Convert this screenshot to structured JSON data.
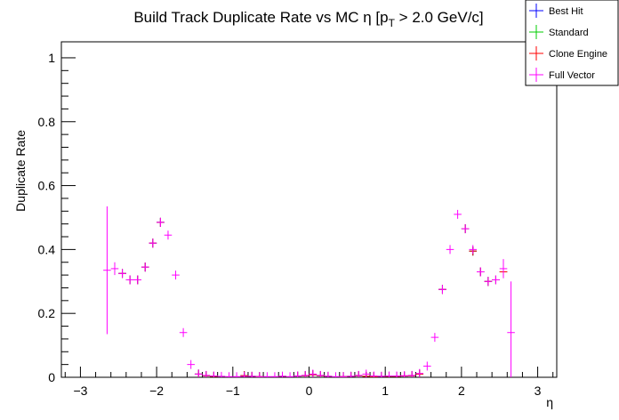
{
  "chart_data": {
    "type": "scatter",
    "title_main": "Build Track Duplicate Rate vs MC η [p",
    "title_sub": "T",
    "title_rest": " > 2.0 GeV/c]",
    "xlabel": "η",
    "ylabel": "Duplicate Rate",
    "xlim": [
      -3.25,
      3.25
    ],
    "ylim": [
      0,
      1.05
    ],
    "x_ticks": [
      "−3",
      "−2",
      "−1",
      "0",
      "1",
      "2",
      "3"
    ],
    "y_ticks": [
      "0",
      "0.2",
      "0.4",
      "0.6",
      "0.8",
      "1"
    ],
    "bin_width": 0.1,
    "legend_position": "top-right",
    "series": [
      {
        "name": "Best Hit",
        "color": "#0000ff",
        "x": [
          -2.45,
          -2.35,
          -2.25,
          -2.15,
          -2.05,
          -1.95,
          -1.45,
          -1.35,
          -1.25,
          -0.85,
          -0.75,
          -0.65,
          -0.35,
          -0.15,
          -0.05,
          0.05,
          0.15,
          0.25,
          0.45,
          0.55,
          0.65,
          0.75,
          0.85,
          0.95,
          1.05,
          1.15,
          1.25,
          1.35,
          1.45,
          1.75,
          2.05,
          2.15,
          2.25,
          2.35,
          2.45,
          2.55
        ],
        "y": [
          0.325,
          0.305,
          0.305,
          0.345,
          0.42,
          0.485,
          0.01,
          0.005,
          0.003,
          0.005,
          0.003,
          0.002,
          0.003,
          0.004,
          0.005,
          0.008,
          0.005,
          0.003,
          0.002,
          0.003,
          0.005,
          0.003,
          0.002,
          0.003,
          0.003,
          0.003,
          0.004,
          0.005,
          0.01,
          0.275,
          0.465,
          0.395,
          0.33,
          0.3,
          0.305,
          0.33
        ]
      },
      {
        "name": "Standard",
        "color": "#00cc00",
        "x": [
          -2.45,
          -2.35,
          -2.25,
          -2.15,
          -2.05,
          -1.95,
          -1.45,
          -1.35,
          -1.25,
          -0.85,
          -0.75,
          -0.65,
          -0.35,
          -0.15,
          -0.05,
          0.05,
          0.15,
          0.25,
          0.45,
          0.55,
          0.65,
          0.75,
          0.85,
          0.95,
          1.05,
          1.15,
          1.25,
          1.35,
          1.45,
          1.75,
          2.05,
          2.15,
          2.25,
          2.35,
          2.45,
          2.55
        ],
        "y": [
          0.325,
          0.305,
          0.305,
          0.345,
          0.42,
          0.485,
          0.01,
          0.005,
          0.003,
          0.005,
          0.003,
          0.002,
          0.003,
          0.004,
          0.005,
          0.008,
          0.005,
          0.003,
          0.002,
          0.003,
          0.005,
          0.003,
          0.002,
          0.003,
          0.003,
          0.003,
          0.004,
          0.005,
          0.01,
          0.275,
          0.465,
          0.395,
          0.33,
          0.3,
          0.305,
          0.33
        ]
      },
      {
        "name": "Clone Engine",
        "color": "#ff0000",
        "x": [
          -2.45,
          -2.35,
          -2.25,
          -2.15,
          -2.05,
          -1.95,
          -1.45,
          -1.35,
          -1.25,
          -0.85,
          -0.75,
          -0.65,
          -0.35,
          -0.15,
          -0.05,
          0.05,
          0.15,
          0.25,
          0.45,
          0.55,
          0.65,
          0.75,
          0.85,
          0.95,
          1.05,
          1.15,
          1.25,
          1.35,
          1.45,
          1.75,
          2.05,
          2.15,
          2.25,
          2.35,
          2.45,
          2.55
        ],
        "y": [
          0.325,
          0.305,
          0.305,
          0.345,
          0.42,
          0.485,
          0.01,
          0.005,
          0.003,
          0.005,
          0.003,
          0.002,
          0.003,
          0.004,
          0.005,
          0.008,
          0.005,
          0.003,
          0.002,
          0.003,
          0.005,
          0.003,
          0.002,
          0.003,
          0.003,
          0.003,
          0.004,
          0.005,
          0.01,
          0.275,
          0.465,
          0.395,
          0.33,
          0.3,
          0.305,
          0.33
        ]
      },
      {
        "name": "Full Vector",
        "color": "#ff00ff",
        "x": [
          -2.65,
          -2.55,
          -2.45,
          -2.35,
          -2.25,
          -2.15,
          -2.05,
          -1.95,
          -1.85,
          -1.75,
          -1.65,
          -1.55,
          -1.45,
          -1.35,
          -1.25,
          -1.15,
          -1.05,
          -0.95,
          -0.85,
          -0.75,
          -0.65,
          -0.55,
          -0.45,
          -0.35,
          -0.25,
          -0.15,
          -0.05,
          0.05,
          0.15,
          0.25,
          0.35,
          0.45,
          0.55,
          0.65,
          0.75,
          0.85,
          0.95,
          1.05,
          1.15,
          1.25,
          1.35,
          1.45,
          1.55,
          1.65,
          1.75,
          1.85,
          1.95,
          2.05,
          2.15,
          2.25,
          2.35,
          2.45,
          2.55,
          2.65
        ],
        "y": [
          0.335,
          0.34,
          0.325,
          0.305,
          0.305,
          0.345,
          0.42,
          0.485,
          0.445,
          0.32,
          0.14,
          0.04,
          0.01,
          0.006,
          0.004,
          0.003,
          0.002,
          0.002,
          0.003,
          0.003,
          0.002,
          0.002,
          0.002,
          0.003,
          0.002,
          0.004,
          0.006,
          0.01,
          0.006,
          0.003,
          0.002,
          0.002,
          0.003,
          0.006,
          0.01,
          0.004,
          0.003,
          0.004,
          0.004,
          0.005,
          0.006,
          0.012,
          0.035,
          0.125,
          0.275,
          0.4,
          0.51,
          0.465,
          0.4,
          0.33,
          0.3,
          0.305,
          0.34,
          0.14
        ],
        "err": [
          0.2,
          0.02,
          0.01,
          0.008,
          0.008,
          0.008,
          0.008,
          0.01,
          0.01,
          0.01,
          0.01,
          0.005,
          0.002,
          0.001,
          0.001,
          0.001,
          0.001,
          0.001,
          0.001,
          0.001,
          0.001,
          0.001,
          0.001,
          0.001,
          0.001,
          0.001,
          0.001,
          0.002,
          0.001,
          0.001,
          0.001,
          0.001,
          0.001,
          0.001,
          0.002,
          0.001,
          0.001,
          0.001,
          0.001,
          0.001,
          0.001,
          0.002,
          0.004,
          0.008,
          0.012,
          0.012,
          0.012,
          0.012,
          0.012,
          0.01,
          0.01,
          0.012,
          0.03,
          0.16
        ]
      }
    ]
  }
}
